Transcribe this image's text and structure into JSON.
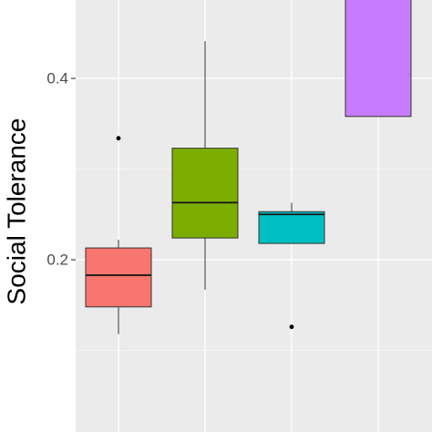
{
  "chart_data": {
    "type": "box",
    "title": "",
    "xlabel": "",
    "ylabel": "Social Tolerance",
    "ylim": [
      0.02,
      0.49
    ],
    "yticks": [
      0.2,
      0.4
    ],
    "ytick_labels": [
      "0.2",
      "0.4"
    ],
    "grid": true,
    "legend": "none",
    "background": "#ebebeb",
    "boxes": [
      {
        "color": "#f8766d",
        "whisker_low": 0.118,
        "q1": 0.148,
        "median": 0.183,
        "q3": 0.213,
        "whisker_high": 0.222,
        "outliers": [
          0.334
        ]
      },
      {
        "color": "#7cae00",
        "whisker_low": 0.167,
        "q1": 0.224,
        "median": 0.263,
        "q3": 0.323,
        "whisker_high": 0.441,
        "outliers": []
      },
      {
        "color": "#00bfc4",
        "whisker_low": 0.218,
        "q1": 0.218,
        "median": 0.25,
        "q3": 0.253,
        "whisker_high": 0.263,
        "outliers": [
          0.126
        ]
      },
      {
        "color": "#c77cff",
        "whisker_low": 0.358,
        "q1": 0.358,
        "median": 0.49,
        "q3": 0.49,
        "whisker_high": 0.49,
        "outliers": []
      }
    ]
  }
}
